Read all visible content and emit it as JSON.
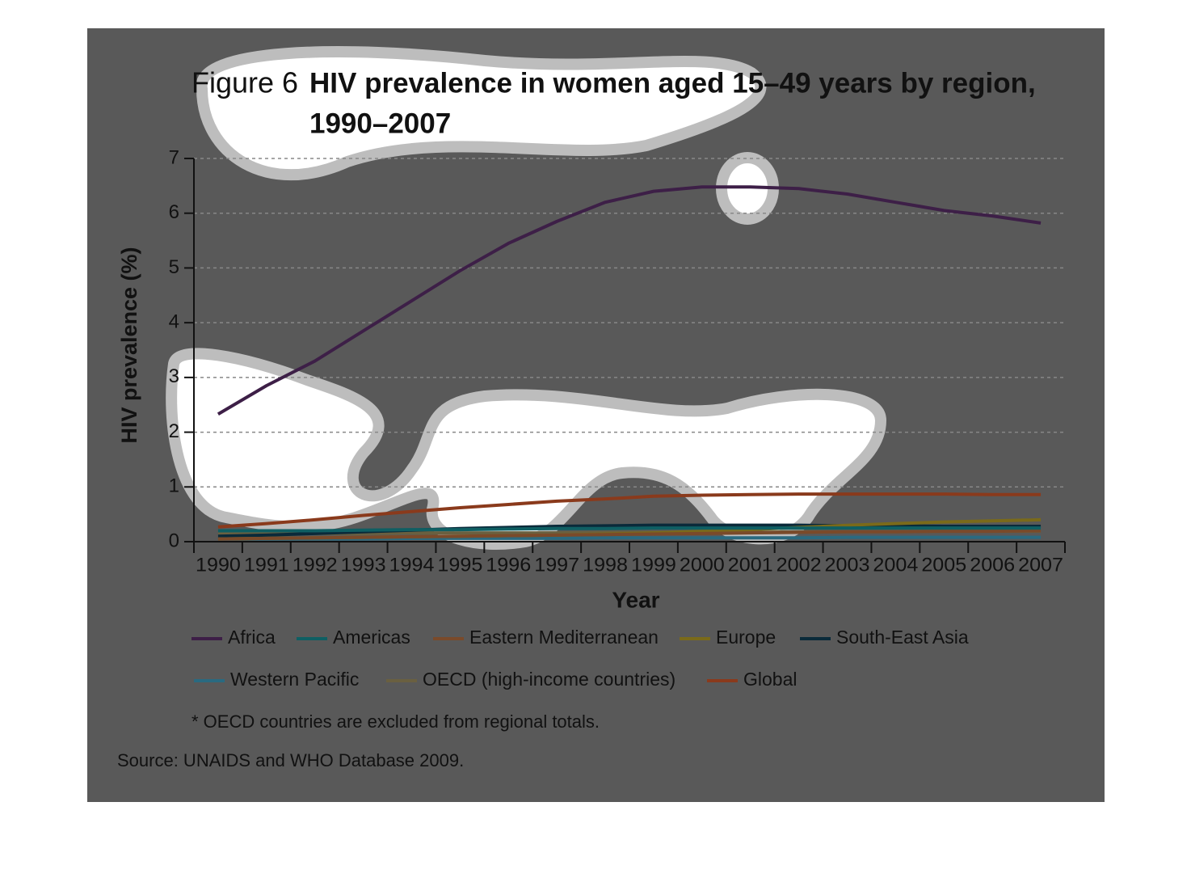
{
  "chart_data": {
    "type": "line",
    "figure_label": "Figure 6",
    "title": [
      "HIV prevalence in women aged 15–49 years by region,",
      "1990–2007"
    ],
    "ylabel": "HIV prevalence (%)",
    "xlabel": "Year",
    "categories": [
      "1990",
      "1991",
      "1992",
      "1993",
      "1994",
      "1995",
      "1996",
      "1997",
      "1998",
      "1999",
      "2000",
      "2001",
      "2002",
      "2003",
      "2004",
      "2005",
      "2006",
      "2007"
    ],
    "ylim": [
      0,
      7
    ],
    "yticks": [
      0,
      1,
      2,
      3,
      4,
      5,
      6,
      7
    ],
    "grid": true,
    "series": [
      {
        "name": "Africa",
        "color": "#3d1f47",
        "values": [
          2.33,
          2.85,
          3.3,
          3.85,
          4.4,
          4.95,
          5.45,
          5.85,
          6.2,
          6.4,
          6.48,
          6.48,
          6.45,
          6.35,
          6.2,
          6.05,
          5.95,
          5.82
        ]
      },
      {
        "name": "Americas",
        "color": "#0f5f63",
        "values": [
          0.2,
          0.2,
          0.2,
          0.21,
          0.22,
          0.22,
          0.23,
          0.24,
          0.24,
          0.25,
          0.25,
          0.25,
          0.25,
          0.25,
          0.25,
          0.25,
          0.25,
          0.25
        ]
      },
      {
        "name": "Eastern Mediterranean",
        "color": "#7a4a2a",
        "values": [
          0.05,
          0.06,
          0.07,
          0.08,
          0.09,
          0.1,
          0.11,
          0.12,
          0.13,
          0.14,
          0.15,
          0.16,
          0.17,
          0.18,
          0.18,
          0.19,
          0.19,
          0.2
        ]
      },
      {
        "name": "Europe",
        "color": "#7a6a1a",
        "values": [
          0.05,
          0.06,
          0.07,
          0.08,
          0.09,
          0.1,
          0.11,
          0.12,
          0.14,
          0.16,
          0.19,
          0.22,
          0.26,
          0.3,
          0.33,
          0.36,
          0.38,
          0.4
        ]
      },
      {
        "name": "South-East Asia",
        "color": "#0a2a3a",
        "values": [
          0.1,
          0.12,
          0.15,
          0.18,
          0.21,
          0.24,
          0.26,
          0.28,
          0.29,
          0.3,
          0.3,
          0.3,
          0.3,
          0.29,
          0.29,
          0.28,
          0.28,
          0.28
        ]
      },
      {
        "name": "Western Pacific",
        "color": "#2a6a80",
        "values": [
          0.05,
          0.05,
          0.05,
          0.05,
          0.06,
          0.06,
          0.06,
          0.06,
          0.07,
          0.07,
          0.07,
          0.07,
          0.07,
          0.08,
          0.08,
          0.08,
          0.08,
          0.08
        ]
      },
      {
        "name": "OECD (high-income countries)",
        "color": "#6a6040",
        "values": [
          0.15,
          0.15,
          0.15,
          0.15,
          0.16,
          0.16,
          0.16,
          0.16,
          0.17,
          0.17,
          0.17,
          0.17,
          0.18,
          0.18,
          0.18,
          0.19,
          0.19,
          0.19
        ]
      },
      {
        "name": "Global",
        "color": "#8a3a1c",
        "values": [
          0.27,
          0.33,
          0.4,
          0.48,
          0.55,
          0.62,
          0.68,
          0.74,
          0.78,
          0.83,
          0.85,
          0.86,
          0.87,
          0.87,
          0.87,
          0.87,
          0.86,
          0.86
        ]
      }
    ],
    "note": "* OECD countries are excluded from regional totals.",
    "source": "Source: UNAIDS and WHO Database 2009."
  }
}
